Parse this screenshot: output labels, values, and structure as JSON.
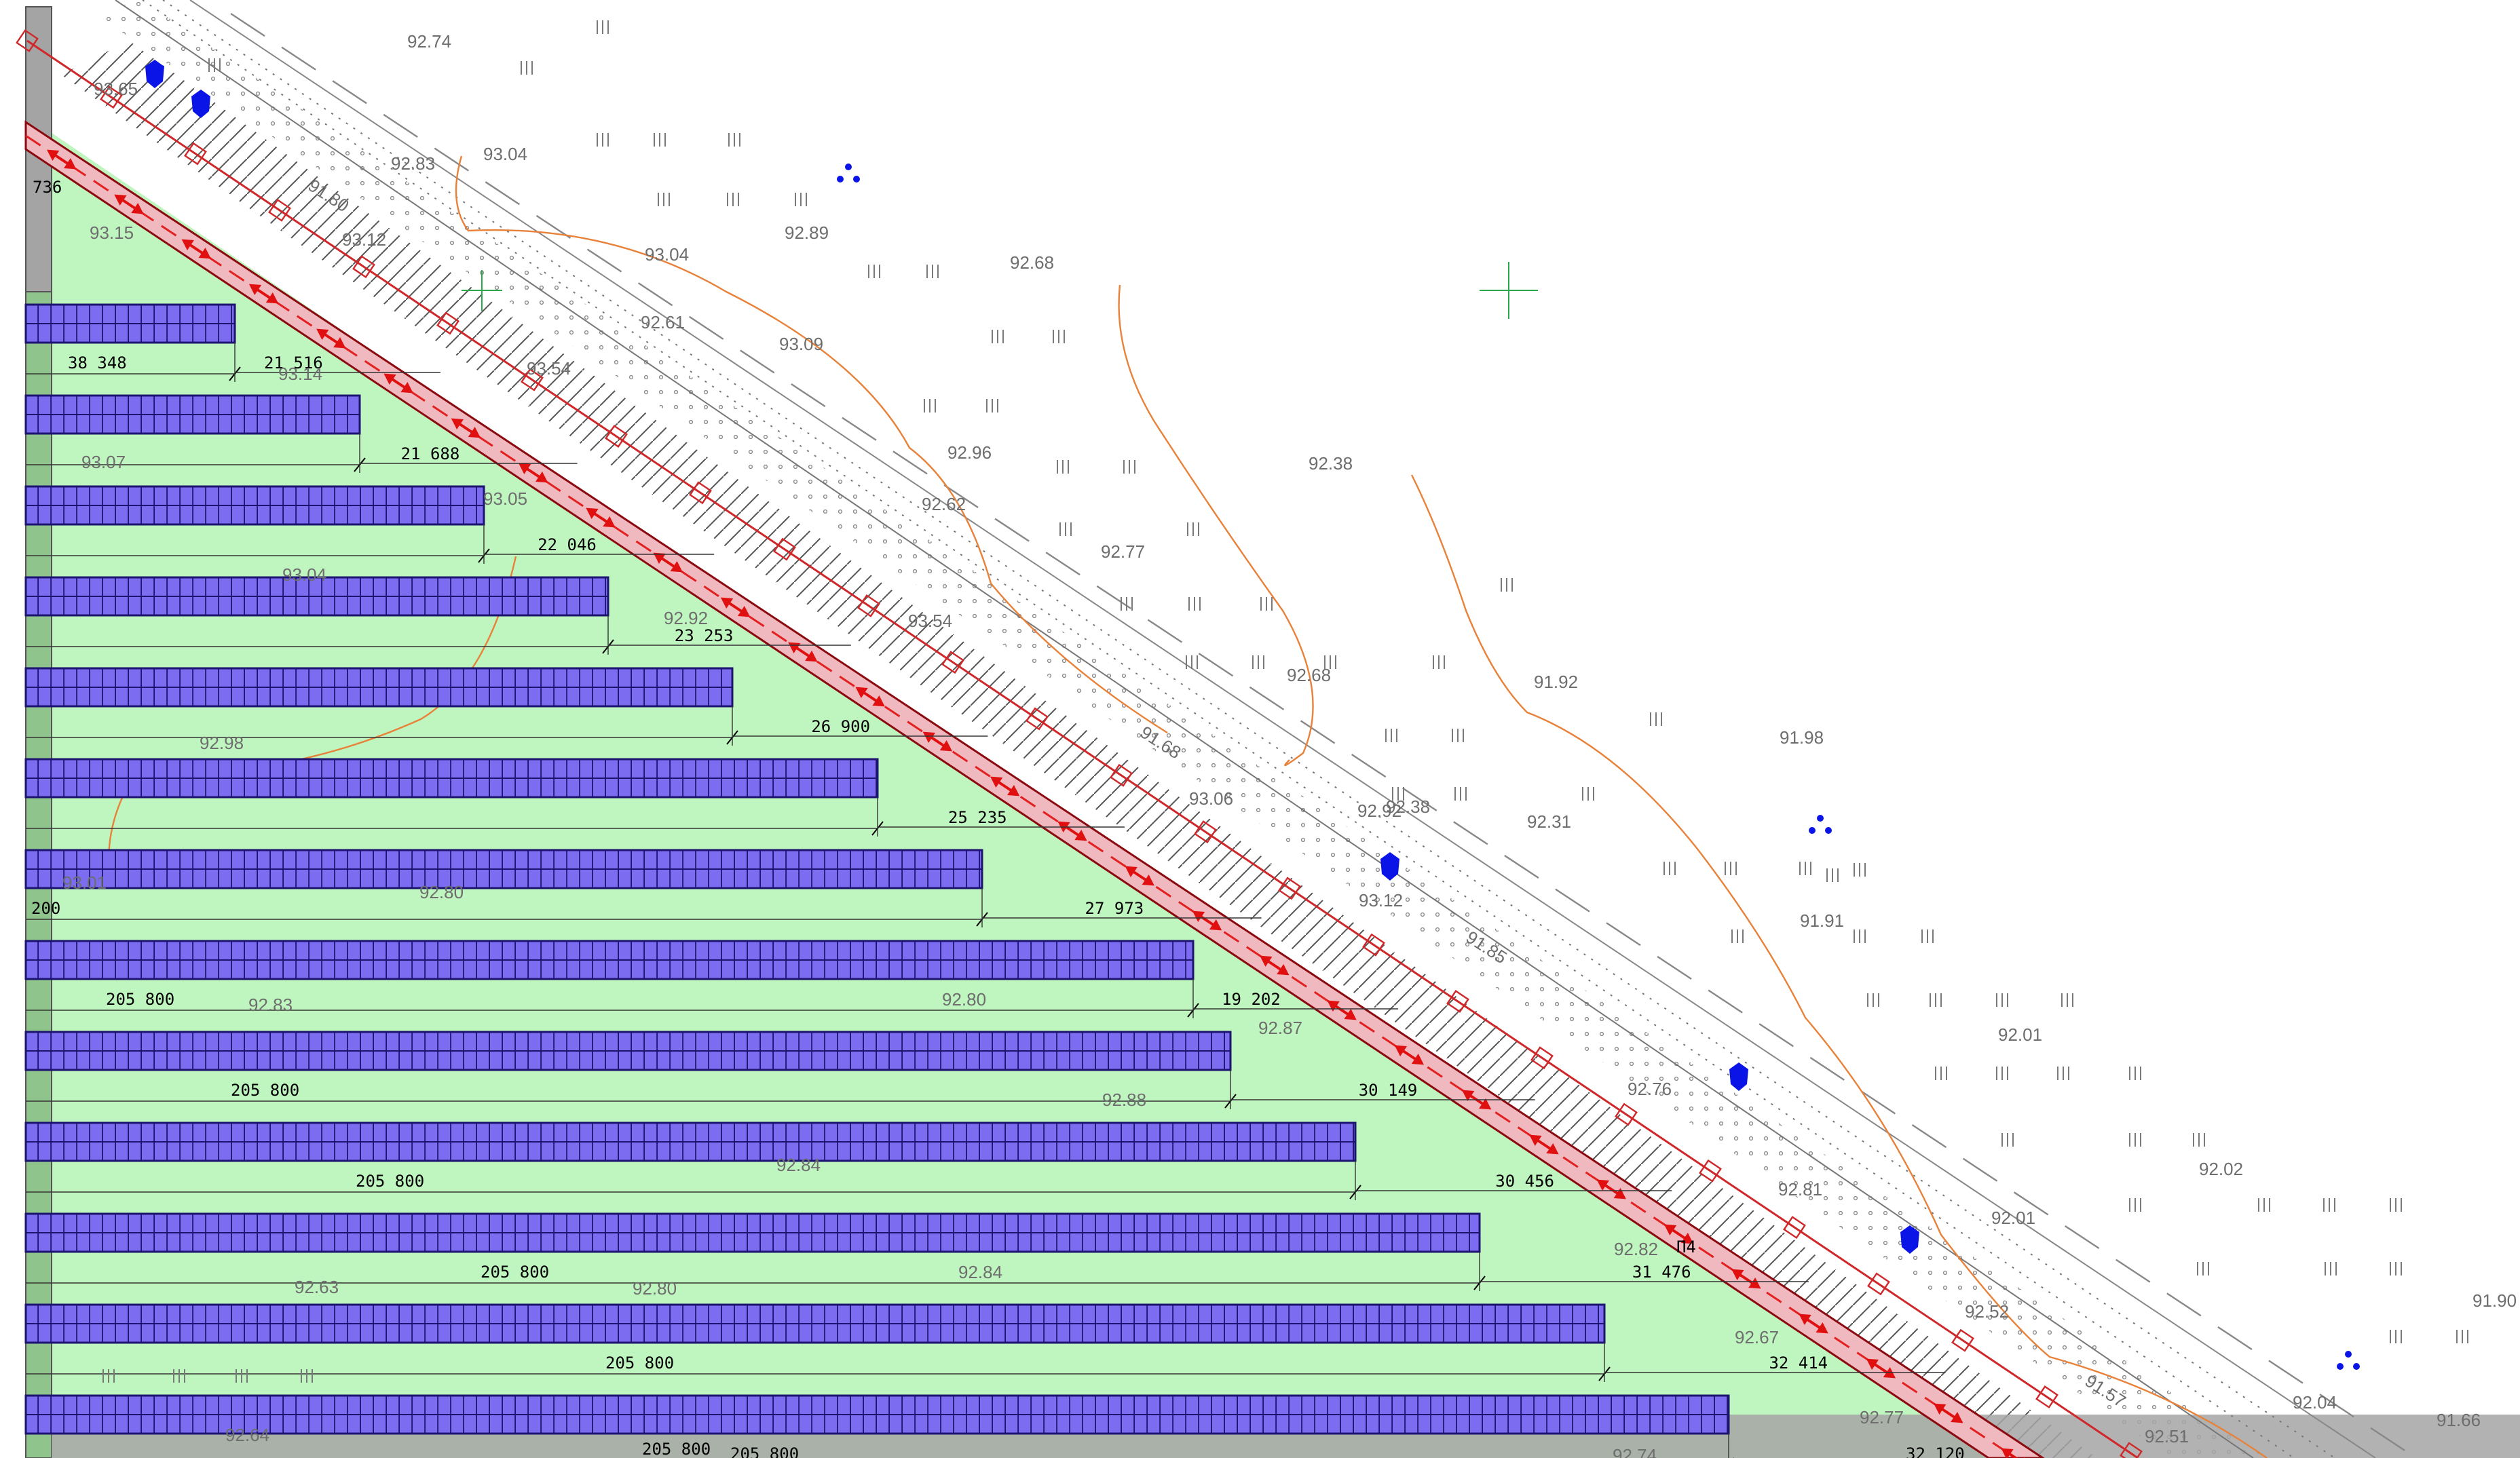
{
  "drawing": {
    "colors": {
      "background": "#ffffff",
      "field": "#bff5be",
      "panel_fill": "#7b6cf0",
      "panel_stroke": "#1c1470",
      "fence": "#d0282a",
      "contour": "#e8823a",
      "border": "#9a9a9a",
      "marker": "#0a14e6"
    },
    "panel_rows": [
      {
        "dimension": "38 348",
        "length_label": "21 516"
      },
      {
        "dimension": "",
        "length_label": "21 688"
      },
      {
        "dimension": "",
        "length_label": "22 046"
      },
      {
        "dimension": "",
        "length_label": "23 253"
      },
      {
        "dimension": "",
        "length_label": "26 900"
      },
      {
        "dimension": "",
        "length_label": "25 235"
      },
      {
        "dimension": "200",
        "length_label": "27 973"
      },
      {
        "dimension": "205 800",
        "length_label": "19 202"
      },
      {
        "dimension": "205 800",
        "length_label": "30 149"
      },
      {
        "dimension": "205 800",
        "length_label": "30 456"
      },
      {
        "dimension": "205 800",
        "length_label": "31 476"
      },
      {
        "dimension": "205 800",
        "length_label": "32 414"
      },
      {
        "dimension": "205 800",
        "length_label": "32 120"
      }
    ],
    "corner_label": "736",
    "mark_label": "П4",
    "elevations": [
      "92.74",
      "93.65",
      "92.83",
      "93.04",
      "91.80",
      "93.15",
      "93.12",
      "93.04",
      "92.89",
      "92.68",
      "92.61",
      "93.09",
      "93.14",
      "93.54",
      "92.96",
      "93.07",
      "93.05",
      "92.62",
      "92.77",
      "92.38",
      "93.04",
      "92.92",
      "93.54",
      "92.68",
      "91.92",
      "91.98",
      "91.68",
      "93.06",
      "92.38",
      "92.31",
      "92.98",
      "92.92",
      "93.01",
      "92.80",
      "93.12",
      "91.85",
      "91.91",
      "92.83",
      "92.80",
      "92.87",
      "92.01",
      "92.88",
      "92.76",
      "92.02",
      "92.84",
      "92.81",
      "92.01",
      "92.63",
      "92.80",
      "92.84",
      "92.82",
      "92.52",
      "91.90",
      "92.64",
      "92.67",
      "91.57",
      "92.77",
      "92.04",
      "91.66",
      "92.74",
      "92.51"
    ]
  }
}
